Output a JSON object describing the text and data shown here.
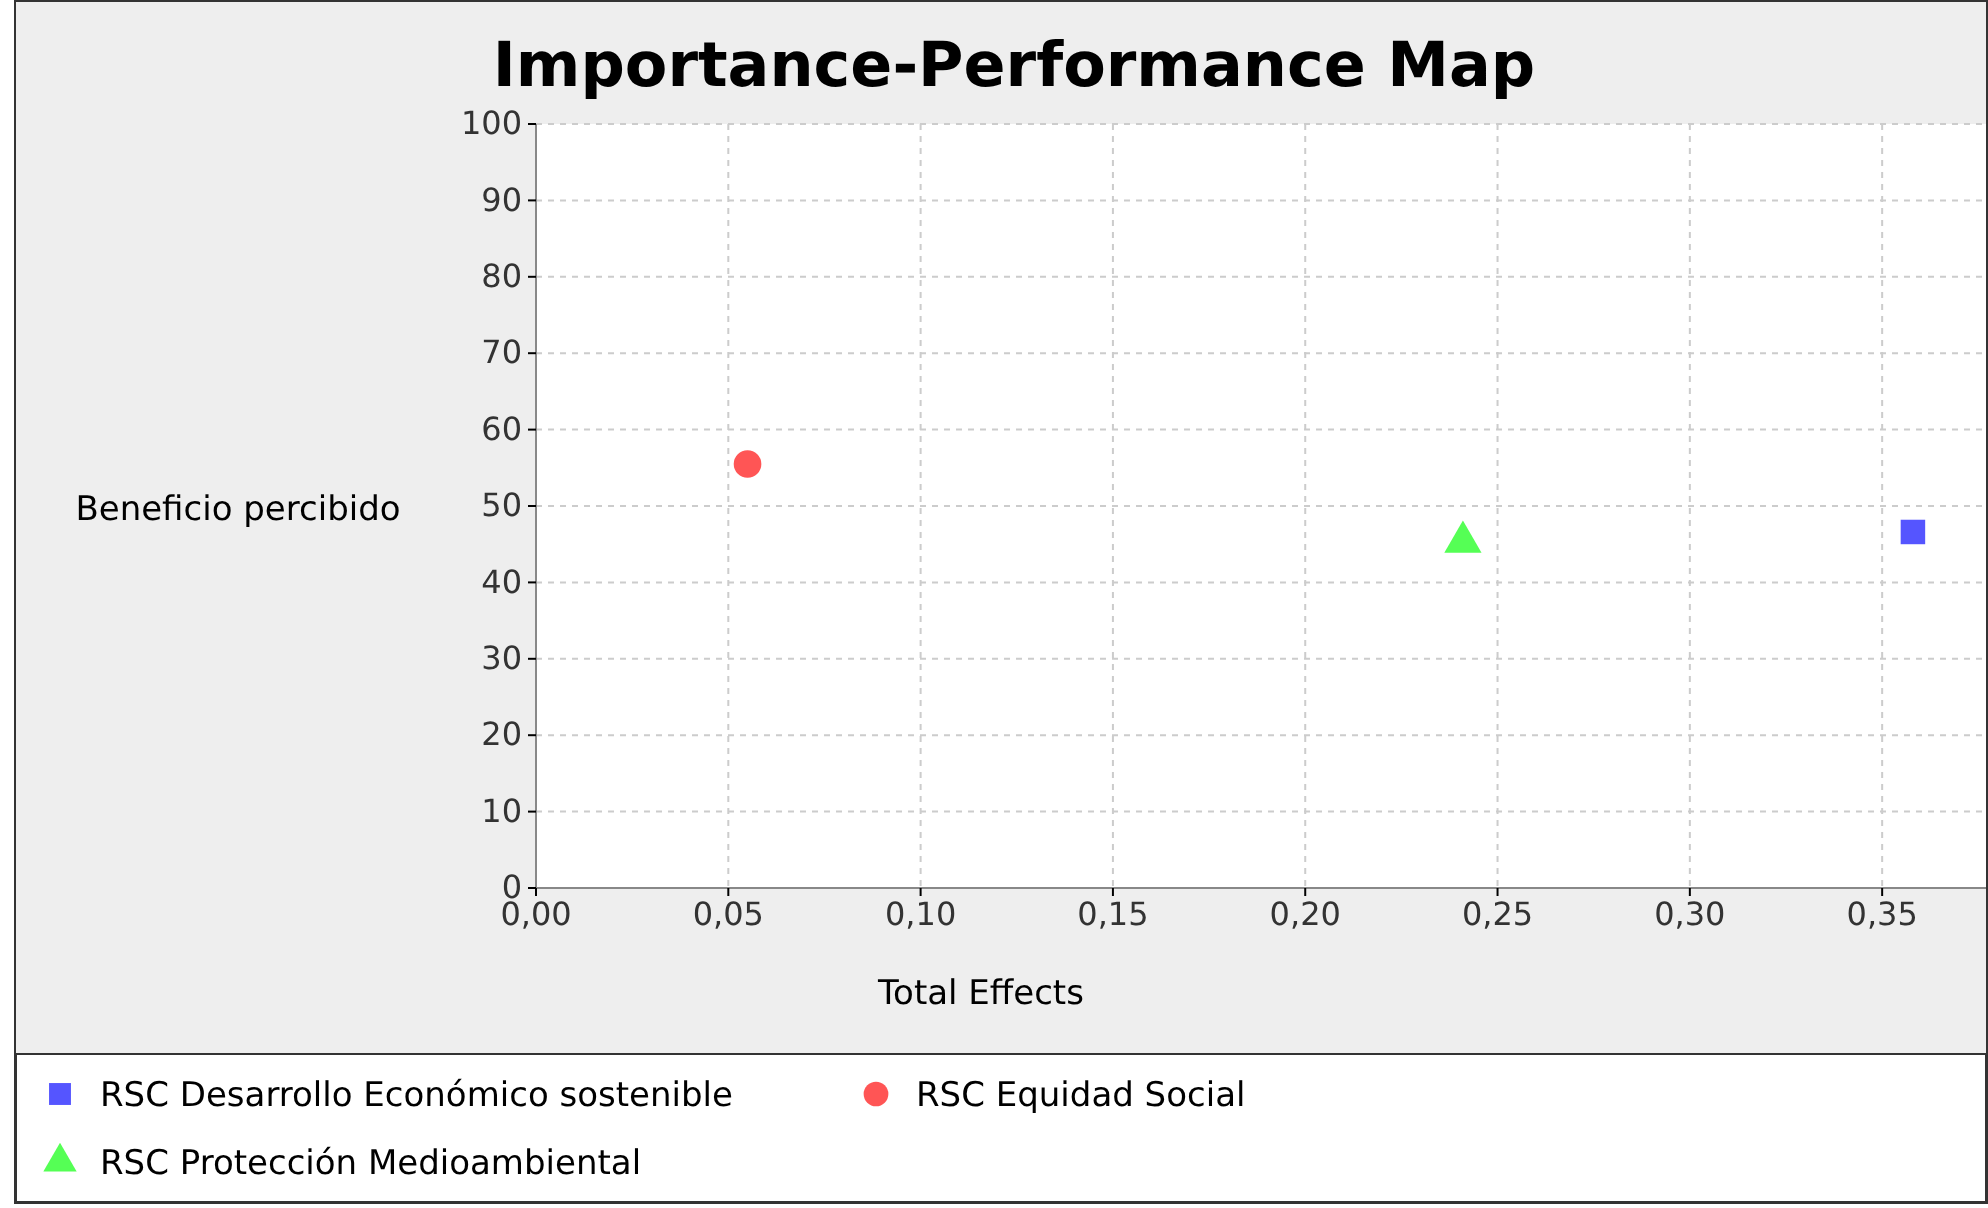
{
  "chart_data": {
    "type": "scatter",
    "title": "Importance-Performance Map",
    "xlabel": "Total Effects",
    "ylabel": "Beneficio percibido",
    "xlim": [
      0,
      0.377
    ],
    "xticks": [
      {
        "value": 0,
        "label": "0,00"
      },
      {
        "value": 0.05,
        "label": "0,05"
      },
      {
        "value": 0.1,
        "label": "0,10"
      },
      {
        "value": 0.15,
        "label": "0,15"
      },
      {
        "value": 0.2,
        "label": "0,20"
      },
      {
        "value": 0.25,
        "label": "0,25"
      },
      {
        "value": 0.3,
        "label": "0,30"
      },
      {
        "value": 0.35,
        "label": "0,35"
      }
    ],
    "ylim": [
      0,
      100
    ],
    "yticks": [
      0,
      10,
      20,
      30,
      40,
      50,
      60,
      70,
      80,
      90,
      100
    ],
    "grid": true,
    "legend": "bottom",
    "series": [
      {
        "name": "RSC Desarrollo Económico sostenible",
        "color": "#5555ff",
        "marker": "square",
        "x": [
          0.358
        ],
        "values": [
          46.6
        ]
      },
      {
        "name": "RSC Equidad Social",
        "color": "#ff5555",
        "marker": "circle",
        "x": [
          0.055
        ],
        "values": [
          55.5
        ]
      },
      {
        "name": "RSC Protección Medioambiental",
        "color": "#55ff55",
        "marker": "triangle",
        "x": [
          0.241
        ],
        "values": [
          45.3
        ]
      }
    ]
  }
}
